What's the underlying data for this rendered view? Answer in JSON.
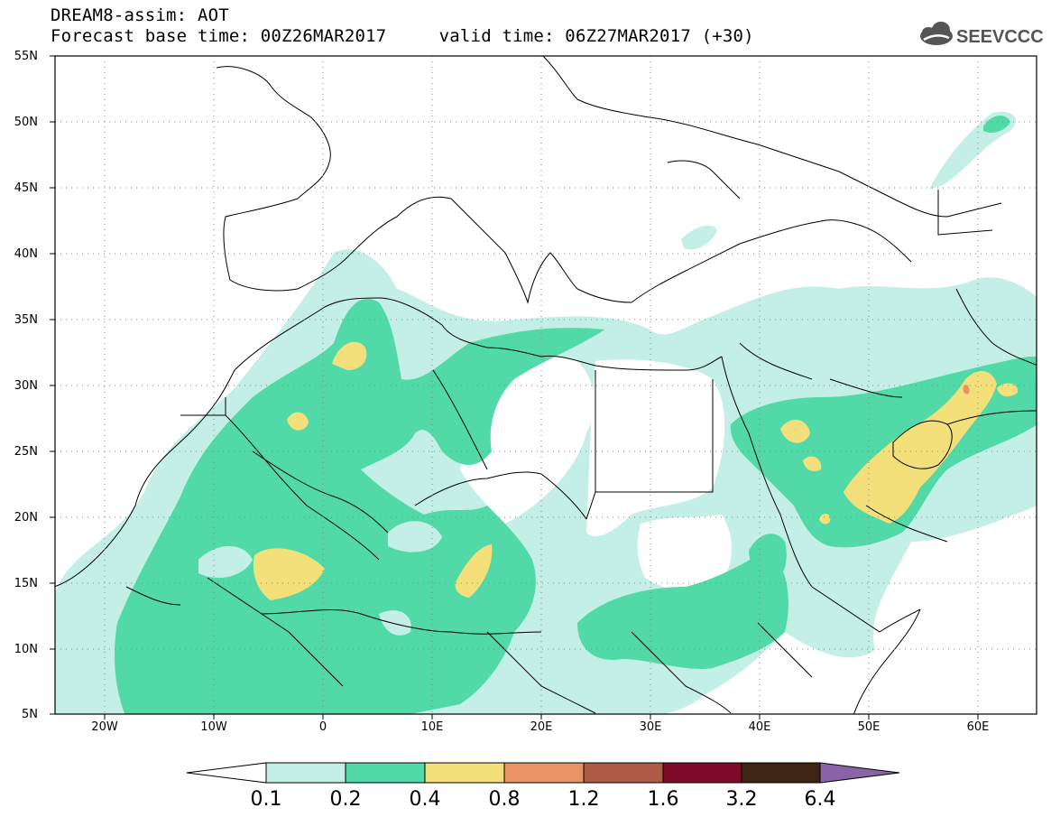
{
  "header": {
    "title_line1": "DREAM8-assim: AOT",
    "title_line2": "Forecast base time: 00Z26MAR2017     valid time: 06Z27MAR2017 (+30)"
  },
  "logo": {
    "text": "SEEVCCC",
    "icon": "cloud-icon"
  },
  "map": {
    "region": "North Africa / Middle East",
    "lon_range": [
      -25,
      65
    ],
    "lat_range": [
      5,
      55
    ],
    "lat_labels": [
      "55N",
      "50N",
      "45N",
      "40N",
      "35N",
      "30N",
      "25N",
      "20N",
      "15N",
      "10N",
      "5N"
    ],
    "lon_labels": [
      "20W",
      "10W",
      "0",
      "10E",
      "20E",
      "30E",
      "40E",
      "50E",
      "60E"
    ],
    "grid": "dotted"
  },
  "colorbar": {
    "levels": [
      "0.1",
      "0.2",
      "0.4",
      "0.8",
      "1.2",
      "1.6",
      "3.2",
      "6.4"
    ],
    "colors": [
      "#ffffff",
      "#c4efe6",
      "#52d9a8",
      "#f4e07a",
      "#e89467",
      "#b05a48",
      "#7e0a2a",
      "#3d2414",
      "#8a63a8"
    ]
  }
}
